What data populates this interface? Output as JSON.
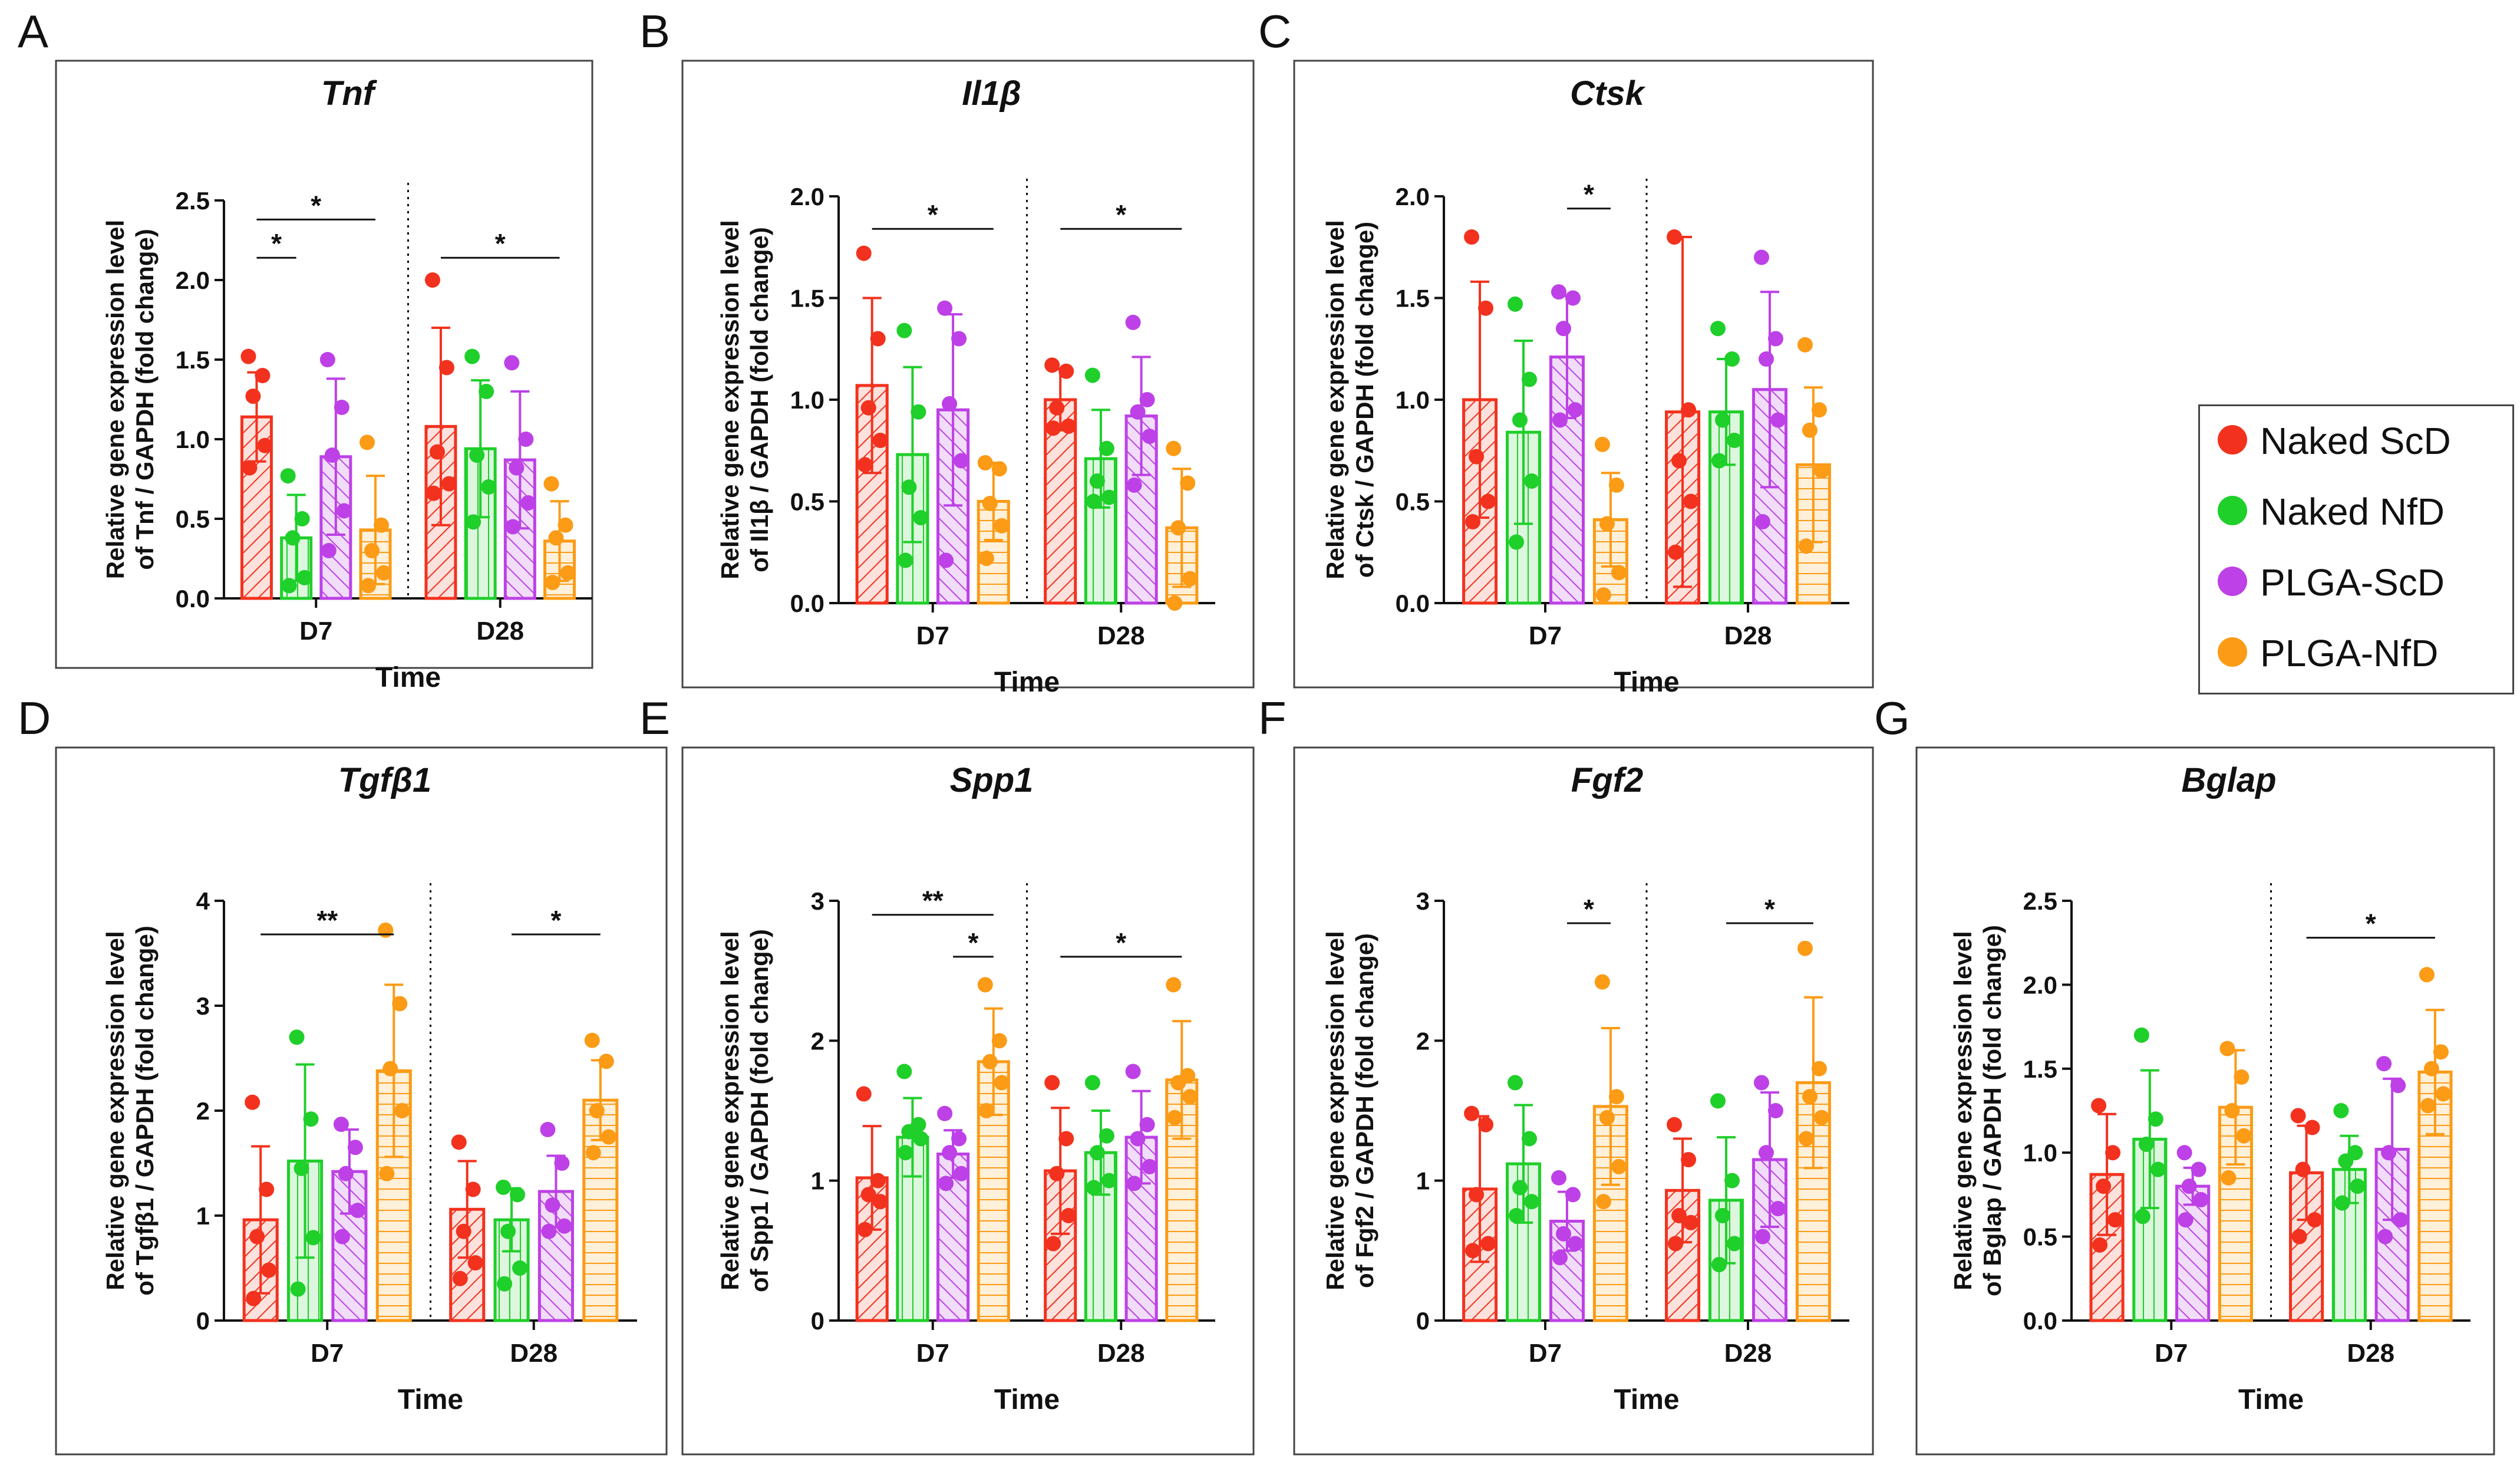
{
  "figure": {
    "legend": [
      {
        "label": "Naked ScD",
        "color": "#f2321e"
      },
      {
        "label": "Naked NfD",
        "color": "#1fcf2a"
      },
      {
        "label": "PLGA-ScD",
        "color": "#bd41e6"
      },
      {
        "label": "PLGA-NfD",
        "color": "#fb9b16"
      }
    ]
  },
  "chart_data": [
    {
      "panel": "A",
      "type": "bar",
      "title": "Tnf",
      "xlabel": "Time",
      "ylabel_lines": [
        "Relative gene expression level",
        "of Tnf / GAPDH (fold change)"
      ],
      "ylim": [
        0,
        2.5
      ],
      "yticks": [
        "0.0",
        "0.5",
        "1.0",
        "1.5",
        "2.0",
        "2.5"
      ],
      "groups": [
        "D7",
        "D28"
      ],
      "series": [
        {
          "name": "Naked ScD",
          "values": [
            1.14,
            1.08
          ],
          "errors": [
            0.28,
            0.62
          ],
          "points": [
            [
              1.52,
              1.4,
              1.27,
              0.96,
              0.82
            ],
            [
              2.0,
              1.45,
              0.92,
              0.72,
              0.66
            ]
          ]
        },
        {
          "name": "Naked NfD",
          "values": [
            0.38,
            0.94
          ],
          "errors": [
            0.27,
            0.43
          ],
          "points": [
            [
              0.77,
              0.5,
              0.38,
              0.13,
              0.08
            ],
            [
              1.52,
              1.3,
              0.9,
              0.7,
              0.48
            ]
          ]
        },
        {
          "name": "PLGA-ScD",
          "values": [
            0.89,
            0.87
          ],
          "errors": [
            0.49,
            0.43
          ],
          "points": [
            [
              1.5,
              1.2,
              0.9,
              0.55,
              0.3
            ],
            [
              1.48,
              1.0,
              0.82,
              0.6,
              0.45
            ]
          ]
        },
        {
          "name": "PLGA-NfD",
          "values": [
            0.43,
            0.36
          ],
          "errors": [
            0.34,
            0.25
          ],
          "points": [
            [
              0.98,
              0.46,
              0.3,
              0.16,
              0.08
            ],
            [
              0.72,
              0.46,
              0.38,
              0.16,
              0.1
            ]
          ]
        }
      ],
      "significance": [
        {
          "group": 0,
          "from": 0,
          "to": 1,
          "y": 2.14,
          "label": "*"
        },
        {
          "group": 0,
          "from": 0,
          "to": 3,
          "y": 2.38,
          "label": "*"
        },
        {
          "group": 1,
          "from": 0,
          "to": 3,
          "y": 2.14,
          "label": "*"
        }
      ]
    },
    {
      "panel": "B",
      "type": "bar",
      "title": "Il1β",
      "xlabel": "Time",
      "ylabel_lines": [
        "Relative gene expression level",
        "of Il1β / GAPDH (fold change)"
      ],
      "ylim": [
        0,
        2.0
      ],
      "yticks": [
        "0.0",
        "0.5",
        "1.0",
        "1.5",
        "2.0"
      ],
      "groups": [
        "D7",
        "D28"
      ],
      "series": [
        {
          "name": "Naked ScD",
          "values": [
            1.07,
            1.0
          ],
          "errors": [
            0.43,
            0.15
          ],
          "points": [
            [
              1.72,
              1.3,
              0.96,
              0.8,
              0.68
            ],
            [
              1.17,
              1.14,
              0.96,
              0.87,
              0.86
            ]
          ]
        },
        {
          "name": "Naked NfD",
          "values": [
            0.73,
            0.71
          ],
          "errors": [
            0.43,
            0.24
          ],
          "points": [
            [
              1.34,
              0.94,
              0.57,
              0.42,
              0.21
            ],
            [
              1.12,
              0.76,
              0.6,
              0.52,
              0.5
            ]
          ]
        },
        {
          "name": "PLGA-ScD",
          "values": [
            0.95,
            0.92
          ],
          "errors": [
            0.47,
            0.29
          ],
          "points": [
            [
              1.45,
              1.3,
              0.98,
              0.7,
              0.21
            ],
            [
              1.38,
              1.0,
              0.94,
              0.82,
              0.58
            ]
          ]
        },
        {
          "name": "PLGA-NfD",
          "values": [
            0.5,
            0.37
          ],
          "errors": [
            0.19,
            0.29
          ],
          "points": [
            [
              0.69,
              0.66,
              0.49,
              0.38,
              0.22
            ],
            [
              0.76,
              0.59,
              0.37,
              0.12,
              0.0
            ]
          ]
        }
      ],
      "significance": [
        {
          "group": 0,
          "from": 0,
          "to": 3,
          "y": 1.84,
          "label": "*"
        },
        {
          "group": 1,
          "from": 0,
          "to": 3,
          "y": 1.84,
          "label": "*"
        }
      ]
    },
    {
      "panel": "C",
      "type": "bar",
      "title": "Ctsk",
      "xlabel": "Time",
      "ylabel_lines": [
        "Relative gene expression level",
        "of Ctsk / GAPDH (fold change)"
      ],
      "ylim": [
        0,
        2.0
      ],
      "yticks": [
        "0.0",
        "0.5",
        "1.0",
        "1.5",
        "2.0"
      ],
      "groups": [
        "D7",
        "D28"
      ],
      "series": [
        {
          "name": "Naked ScD",
          "values": [
            1.0,
            0.94
          ],
          "errors": [
            0.58,
            0.86
          ],
          "points": [
            [
              1.8,
              1.45,
              0.72,
              0.5,
              0.4
            ],
            [
              1.8,
              0.95,
              0.7,
              0.5,
              0.25
            ]
          ]
        },
        {
          "name": "Naked NfD",
          "values": [
            0.84,
            0.94
          ],
          "errors": [
            0.45,
            0.26
          ],
          "points": [
            [
              1.47,
              1.1,
              0.9,
              0.6,
              0.3
            ],
            [
              1.35,
              1.2,
              0.9,
              0.8,
              0.7
            ]
          ]
        },
        {
          "name": "PLGA-ScD",
          "values": [
            1.21,
            1.05
          ],
          "errors": [
            0.3,
            0.48
          ],
          "points": [
            [
              1.53,
              1.5,
              1.35,
              0.95,
              0.9
            ],
            [
              1.7,
              1.3,
              1.2,
              0.9,
              0.4
            ]
          ]
        },
        {
          "name": "PLGA-NfD",
          "values": [
            0.41,
            0.68
          ],
          "errors": [
            0.23,
            0.38
          ],
          "points": [
            [
              0.78,
              0.58,
              0.39,
              0.15,
              0.04
            ],
            [
              1.27,
              0.95,
              0.85,
              0.65,
              0.28
            ]
          ]
        }
      ],
      "significance": [
        {
          "group": 0,
          "from": 2,
          "to": 3,
          "y": 1.94,
          "label": "*"
        }
      ]
    },
    {
      "panel": "D",
      "type": "bar",
      "title": "Tgfβ1",
      "xlabel": "Time",
      "ylabel_lines": [
        "Relative gene expression level",
        "of Tgfβ1 / GAPDH (fold change)"
      ],
      "ylim": [
        0,
        4
      ],
      "yticks": [
        "0",
        "1",
        "2",
        "3",
        "4"
      ],
      "groups": [
        "D7",
        "D28"
      ],
      "series": [
        {
          "name": "Naked ScD",
          "values": [
            0.96,
            1.06
          ],
          "errors": [
            0.7,
            0.46
          ],
          "points": [
            [
              2.08,
              1.25,
              0.8,
              0.48,
              0.21
            ],
            [
              1.7,
              1.25,
              0.85,
              0.55,
              0.4
            ]
          ]
        },
        {
          "name": "Naked NfD",
          "values": [
            1.52,
            0.96
          ],
          "errors": [
            0.92,
            0.3
          ],
          "points": [
            [
              2.7,
              1.92,
              1.45,
              0.79,
              0.3
            ],
            [
              1.27,
              1.2,
              0.85,
              0.5,
              0.35
            ]
          ]
        },
        {
          "name": "PLGA-ScD",
          "values": [
            1.42,
            1.23
          ],
          "errors": [
            0.4,
            0.34
          ],
          "points": [
            [
              1.87,
              1.65,
              1.4,
              1.05,
              0.8
            ],
            [
              1.82,
              1.5,
              1.1,
              0.9,
              0.85
            ]
          ]
        },
        {
          "name": "PLGA-NfD",
          "values": [
            2.38,
            2.1
          ],
          "errors": [
            0.82,
            0.38
          ],
          "points": [
            [
              3.72,
              3.02,
              2.4,
              2.0,
              1.4
            ],
            [
              2.67,
              2.47,
              2.0,
              1.75,
              1.6
            ]
          ]
        }
      ],
      "significance": [
        {
          "group": 0,
          "from": 0,
          "to": 3,
          "y": 3.68,
          "label": "**"
        },
        {
          "group": 1,
          "from": 1,
          "to": 3,
          "y": 3.68,
          "label": "*"
        }
      ]
    },
    {
      "panel": "E",
      "type": "bar",
      "title": "Spp1",
      "xlabel": "Time",
      "ylabel_lines": [
        "Relative gene expression level",
        "of Spp1 / GAPDH (fold change)"
      ],
      "ylim": [
        0,
        3
      ],
      "yticks": [
        "0",
        "1",
        "2",
        "3"
      ],
      "groups": [
        "D7",
        "D28"
      ],
      "series": [
        {
          "name": "Naked ScD",
          "values": [
            1.02,
            1.07
          ],
          "errors": [
            0.37,
            0.45
          ],
          "points": [
            [
              1.62,
              1.0,
              0.9,
              0.85,
              0.65
            ],
            [
              1.7,
              1.3,
              1.05,
              0.75,
              0.55
            ]
          ]
        },
        {
          "name": "Naked NfD",
          "values": [
            1.31,
            1.2
          ],
          "errors": [
            0.28,
            0.3
          ],
          "points": [
            [
              1.78,
              1.4,
              1.35,
              1.3,
              1.2
            ],
            [
              1.7,
              1.32,
              1.2,
              1.0,
              0.95
            ]
          ]
        },
        {
          "name": "PLGA-ScD",
          "values": [
            1.19,
            1.31
          ],
          "errors": [
            0.17,
            0.33
          ],
          "points": [
            [
              1.48,
              1.3,
              1.2,
              1.05,
              0.98
            ],
            [
              1.78,
              1.4,
              1.3,
              1.1,
              0.98
            ]
          ]
        },
        {
          "name": "PLGA-NfD",
          "values": [
            1.85,
            1.72
          ],
          "errors": [
            0.38,
            0.42
          ],
          "points": [
            [
              2.4,
              2.0,
              1.85,
              1.7,
              1.5
            ],
            [
              2.4,
              1.75,
              1.7,
              1.6,
              1.45
            ]
          ]
        }
      ],
      "significance": [
        {
          "group": 0,
          "from": 0,
          "to": 3,
          "y": 2.9,
          "label": "**"
        },
        {
          "group": 0,
          "from": 2,
          "to": 3,
          "y": 2.6,
          "label": "*"
        },
        {
          "group": 1,
          "from": 0,
          "to": 3,
          "y": 2.6,
          "label": "*"
        }
      ]
    },
    {
      "panel": "F",
      "type": "bar",
      "title": "Fgf2",
      "xlabel": "Time",
      "ylabel_lines": [
        "Relative gene expression level",
        "of Fgf2 / GAPDH (fold change)"
      ],
      "ylim": [
        0,
        3
      ],
      "yticks": [
        "0",
        "1",
        "2",
        "3"
      ],
      "groups": [
        "D7",
        "D28"
      ],
      "series": [
        {
          "name": "Naked ScD",
          "values": [
            0.94,
            0.93
          ],
          "errors": [
            0.52,
            0.37
          ],
          "points": [
            [
              1.48,
              1.4,
              0.9,
              0.55,
              0.5
            ],
            [
              1.4,
              1.15,
              0.75,
              0.7,
              0.55
            ]
          ]
        },
        {
          "name": "Naked NfD",
          "values": [
            1.12,
            0.86
          ],
          "errors": [
            0.42,
            0.45
          ],
          "points": [
            [
              1.7,
              1.3,
              0.95,
              0.85,
              0.75
            ],
            [
              1.57,
              1.0,
              0.75,
              0.55,
              0.4
            ]
          ]
        },
        {
          "name": "PLGA-ScD",
          "values": [
            0.71,
            1.15
          ],
          "errors": [
            0.21,
            0.48
          ],
          "points": [
            [
              1.02,
              0.9,
              0.62,
              0.55,
              0.45
            ],
            [
              1.7,
              1.5,
              1.2,
              0.8,
              0.6
            ]
          ]
        },
        {
          "name": "PLGA-NfD",
          "values": [
            1.53,
            1.7
          ],
          "errors": [
            0.56,
            0.61
          ],
          "points": [
            [
              2.42,
              1.6,
              1.45,
              1.1,
              0.85
            ],
            [
              2.66,
              1.8,
              1.6,
              1.45,
              1.3
            ]
          ]
        }
      ],
      "significance": [
        {
          "group": 0,
          "from": 2,
          "to": 3,
          "y": 2.84,
          "label": "*"
        },
        {
          "group": 1,
          "from": 1,
          "to": 3,
          "y": 2.84,
          "label": "*"
        }
      ]
    },
    {
      "panel": "G",
      "type": "bar",
      "title": "Bglap",
      "xlabel": "Time",
      "ylabel_lines": [
        "Relative gene expression level",
        "of Bglap / GAPDH (fold change)"
      ],
      "ylim": [
        0,
        2.5
      ],
      "yticks": [
        "0.0",
        "0.5",
        "1.0",
        "1.5",
        "2.0",
        "2.5"
      ],
      "groups": [
        "D7",
        "D28"
      ],
      "series": [
        {
          "name": "Naked ScD",
          "values": [
            0.87,
            0.88
          ],
          "errors": [
            0.36,
            0.28
          ],
          "points": [
            [
              1.28,
              1.0,
              0.8,
              0.6,
              0.45
            ],
            [
              1.22,
              1.15,
              0.9,
              0.6,
              0.5
            ]
          ]
        },
        {
          "name": "Naked NfD",
          "values": [
            1.08,
            0.9
          ],
          "errors": [
            0.41,
            0.2
          ],
          "points": [
            [
              1.7,
              1.2,
              1.05,
              0.9,
              0.62
            ],
            [
              1.25,
              1.0,
              0.95,
              0.8,
              0.7
            ]
          ]
        },
        {
          "name": "PLGA-ScD",
          "values": [
            0.8,
            1.02
          ],
          "errors": [
            0.11,
            0.42
          ],
          "points": [
            [
              1.0,
              0.9,
              0.8,
              0.72,
              0.6
            ],
            [
              1.53,
              1.4,
              1.0,
              0.6,
              0.5
            ]
          ]
        },
        {
          "name": "PLGA-NfD",
          "values": [
            1.27,
            1.48
          ],
          "errors": [
            0.34,
            0.37
          ],
          "points": [
            [
              1.62,
              1.45,
              1.25,
              1.1,
              0.85
            ],
            [
              2.06,
              1.6,
              1.5,
              1.35,
              1.28
            ]
          ]
        }
      ],
      "significance": [
        {
          "group": 1,
          "from": 0,
          "to": 3,
          "y": 2.28,
          "label": "*"
        }
      ]
    }
  ]
}
